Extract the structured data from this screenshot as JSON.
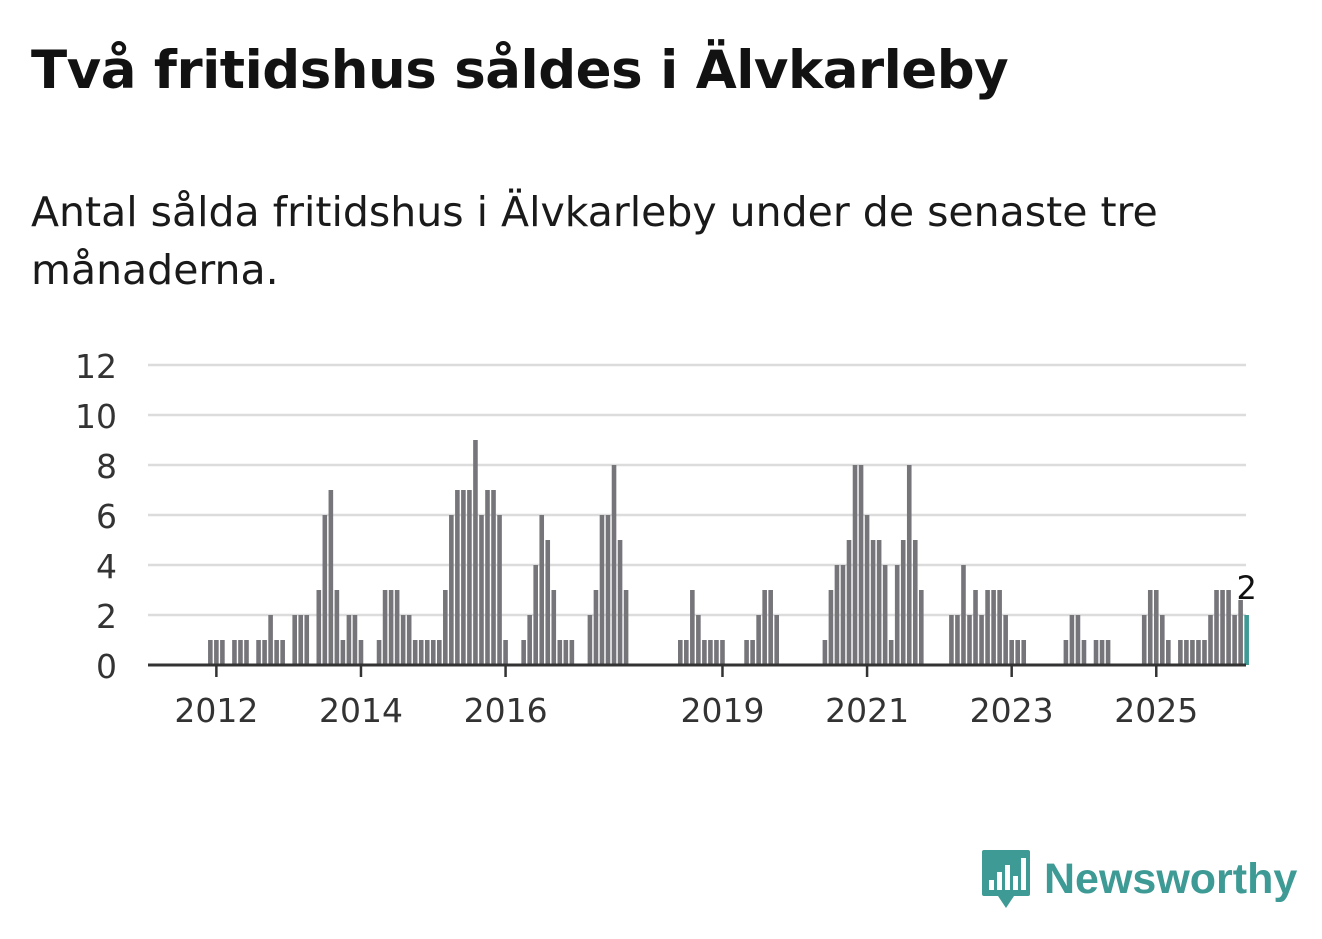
{
  "header": {
    "title": "Två fritidshus såldes i Älvkarleby",
    "subtitle": "Antal sålda fritidshus i Älvkarleby under de senaste tre månaderna."
  },
  "brand": {
    "name": "Newsworthy",
    "icon": "newsworthy-logo-icon",
    "color": "#3e9a95"
  },
  "chart_data": {
    "type": "bar",
    "title": "Två fritidshus såldes i Älvkarleby",
    "subtitle": "Antal sålda fritidshus i Älvkarleby under de senaste tre månaderna.",
    "xlabel": "",
    "ylabel": "",
    "ylim": [
      0,
      12
    ],
    "yticks": [
      0,
      2,
      4,
      6,
      8,
      10,
      12
    ],
    "xticks": [
      {
        "label": "2012",
        "index": 3
      },
      {
        "label": "2014",
        "index": 27
      },
      {
        "label": "2016",
        "index": 51
      },
      {
        "label": "2019",
        "index": 87
      },
      {
        "label": "2021",
        "index": 111
      },
      {
        "label": "2023",
        "index": 135
      },
      {
        "label": "2025",
        "index": 159
      }
    ],
    "grid": true,
    "bar_color": "#76757a",
    "highlight_color": "#3e9a95",
    "highlight_label": "2",
    "series": [
      {
        "name": "Sålda fritidshus",
        "values": [
          0,
          0,
          1,
          1,
          1,
          0,
          1,
          1,
          1,
          0,
          1,
          1,
          2,
          1,
          1,
          0,
          2,
          2,
          2,
          0,
          3,
          6,
          7,
          3,
          1,
          2,
          2,
          1,
          0,
          0,
          1,
          3,
          3,
          3,
          2,
          2,
          1,
          1,
          1,
          1,
          1,
          3,
          6,
          7,
          7,
          7,
          9,
          6,
          7,
          7,
          6,
          1,
          0,
          0,
          1,
          2,
          4,
          6,
          5,
          3,
          1,
          1,
          1,
          0,
          0,
          2,
          3,
          6,
          6,
          8,
          5,
          3,
          0,
          0,
          0,
          0,
          0,
          0,
          0,
          0,
          1,
          1,
          3,
          2,
          1,
          1,
          1,
          1,
          0,
          0,
          0,
          1,
          1,
          2,
          3,
          3,
          2,
          0,
          0,
          0,
          0,
          0,
          0,
          0,
          1,
          3,
          4,
          4,
          5,
          8,
          8,
          6,
          5,
          5,
          4,
          1,
          4,
          5,
          8,
          5,
          3,
          0,
          0,
          0,
          0,
          2,
          2,
          4,
          2,
          3,
          2,
          3,
          3,
          3,
          2,
          1,
          1,
          1,
          0,
          0,
          0,
          0,
          0,
          0,
          1,
          2,
          2,
          1,
          0,
          1,
          1,
          1,
          0,
          0,
          0,
          0,
          0,
          2,
          3,
          3,
          2,
          1,
          0,
          1,
          1,
          1,
          1,
          1,
          2,
          3,
          3,
          3,
          2,
          2.6,
          2
        ]
      }
    ]
  }
}
